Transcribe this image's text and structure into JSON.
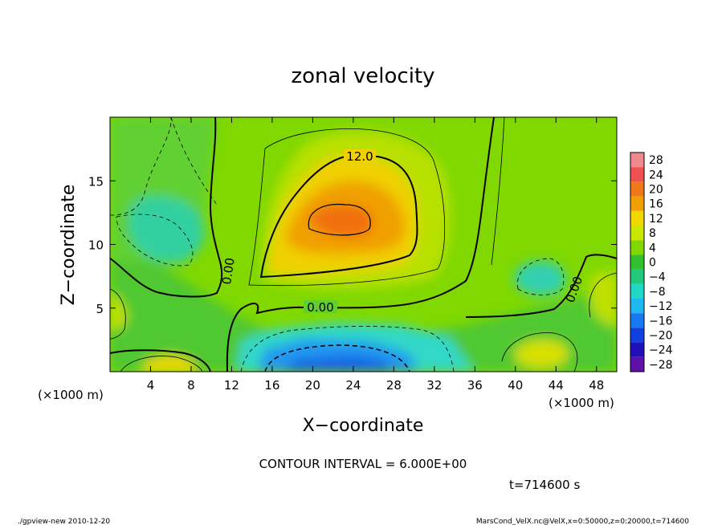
{
  "chart_data": {
    "type": "heatmap",
    "title": "zonal velocity",
    "xlabel": "X−coordinate",
    "ylabel": "Z−coordinate",
    "x_unit_left": "(×1000 m)",
    "x_unit_right": "(×1000 m)",
    "xlim": [
      0,
      50
    ],
    "ylim": [
      0,
      20
    ],
    "x_ticks": [
      4,
      8,
      12,
      16,
      20,
      24,
      28,
      32,
      36,
      40,
      44,
      48
    ],
    "y_ticks": [
      5,
      10,
      15
    ],
    "colorbar_levels": [
      28,
      24,
      20,
      16,
      12,
      8,
      4,
      0,
      -4,
      -8,
      -12,
      -16,
      -20,
      -24,
      -28
    ],
    "colorbar_labels": [
      "28",
      "24",
      "20",
      "16",
      "12",
      "8",
      "4",
      "0",
      "−4",
      "−8",
      "−12",
      "−16",
      "−20",
      "−24",
      "−28"
    ],
    "contour_labels": [
      "12.0",
      "0.00",
      "0.00",
      "0.00"
    ],
    "contour_interval_text": "CONTOUR INTERVAL = 6.000E+00",
    "time_text": "t=714600 s"
  },
  "footer": {
    "left": "./gpview-new  2010-12-20",
    "right": "MarsCond_VelX.nc@VelX,x=0:50000,z=0:20000,t=714600"
  },
  "colors": {
    "colorbar": [
      "#f08890",
      "#f05050",
      "#f07818",
      "#f0a000",
      "#f0d800",
      "#c8e800",
      "#80d800",
      "#30c030",
      "#20c878",
      "#20d8c8",
      "#20b8f0",
      "#1878f0",
      "#1040e0",
      "#2010b8",
      "#6010a8"
    ]
  }
}
